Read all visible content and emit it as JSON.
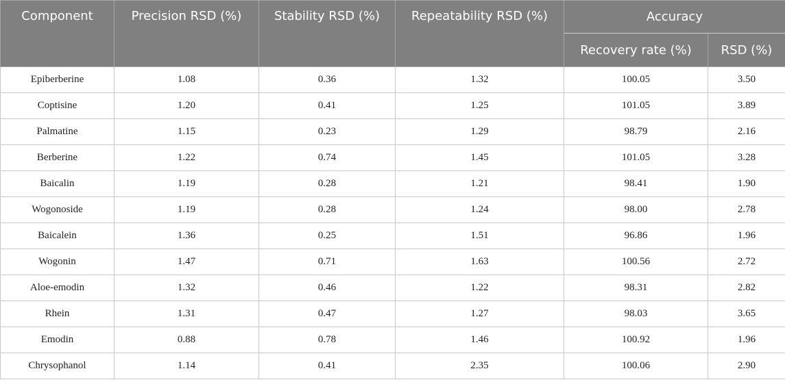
{
  "header": {
    "component": "Component",
    "precision": "Precision RSD (%)",
    "stability": "Stability RSD (%)",
    "repeatability": "Repeatability RSD (%)",
    "accuracy": "Accuracy",
    "recovery": "Recovery rate (%)",
    "rsd": "RSD (%)"
  },
  "rows": [
    {
      "component": "Epiberberine",
      "precision": "1.08",
      "stability": "0.36",
      "repeatability": "1.32",
      "recovery": "100.05",
      "rsd": "3.50"
    },
    {
      "component": "Coptisine",
      "precision": "1.20",
      "stability": "0.41",
      "repeatability": "1.25",
      "recovery": "101.05",
      "rsd": "3.89"
    },
    {
      "component": "Palmatine",
      "precision": "1.15",
      "stability": "0.23",
      "repeatability": "1.29",
      "recovery": "98.79",
      "rsd": "2.16"
    },
    {
      "component": "Berberine",
      "precision": "1.22",
      "stability": "0.74",
      "repeatability": "1.45",
      "recovery": "101.05",
      "rsd": "3.28"
    },
    {
      "component": "Baicalin",
      "precision": "1.19",
      "stability": "0.28",
      "repeatability": "1.21",
      "recovery": "98.41",
      "rsd": "1.90"
    },
    {
      "component": "Wogonoside",
      "precision": "1.19",
      "stability": "0.28",
      "repeatability": "1.24",
      "recovery": "98.00",
      "rsd": "2.78"
    },
    {
      "component": "Baicalein",
      "precision": "1.36",
      "stability": "0.25",
      "repeatability": "1.51",
      "recovery": "96.86",
      "rsd": "1.96"
    },
    {
      "component": "Wogonin",
      "precision": "1.47",
      "stability": "0.71",
      "repeatability": "1.63",
      "recovery": "100.56",
      "rsd": "2.72"
    },
    {
      "component": "Aloe-emodin",
      "precision": "1.32",
      "stability": "0.46",
      "repeatability": "1.22",
      "recovery": "98.31",
      "rsd": "2.82"
    },
    {
      "component": "Rhein",
      "precision": "1.31",
      "stability": "0.47",
      "repeatability": "1.27",
      "recovery": "98.03",
      "rsd": "3.65"
    },
    {
      "component": "Emodin",
      "precision": "0.88",
      "stability": "0.78",
      "repeatability": "1.46",
      "recovery": "100.92",
      "rsd": "1.96"
    },
    {
      "component": "Chrysophanol",
      "precision": "1.14",
      "stability": "0.41",
      "repeatability": "2.35",
      "recovery": "100.06",
      "rsd": "2.90"
    }
  ],
  "colors": {
    "header_bg": "#808080",
    "header_text": "#ffffff",
    "grid_line": "#c8c8c8"
  }
}
